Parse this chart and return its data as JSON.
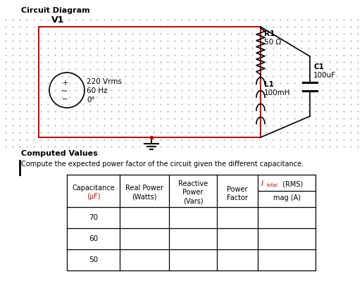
{
  "title": "Circuit Diagram",
  "bg_color": "#ffffff",
  "dot_color": "#aaaaaa",
  "wire_color": "#cc0000",
  "black": "#000000",
  "red_text": "#cc0000",
  "v1_label": "V1",
  "v1_line1": "220 Vrms",
  "v1_line2": "60 Hz",
  "v1_line3": "0°",
  "r1_label": "R1",
  "r1_value": "50 Ω",
  "l1_label": "L1",
  "l1_value": "100mH",
  "c1_label": "C1",
  "c1_value": "100uF",
  "computed_title": "Computed Values",
  "instruction": "Compute the expected power factor of the circuit given the different capacitance.",
  "cap_header1": "Capacitance",
  "cap_header2": "(μF)",
  "rp_header1": "Real Power",
  "rp_header2": "(Watts)",
  "reac_header1": "Reactive",
  "reac_header2": "Power",
  "reac_header3": "(Vars)",
  "pf_header1": "Power",
  "pf_header2": "Factor",
  "it_header": "I",
  "it_sub": "total",
  "it_rms": " (RMS)",
  "mag_header": "mag (A)",
  "row_vals": [
    "70",
    "60",
    "50"
  ]
}
